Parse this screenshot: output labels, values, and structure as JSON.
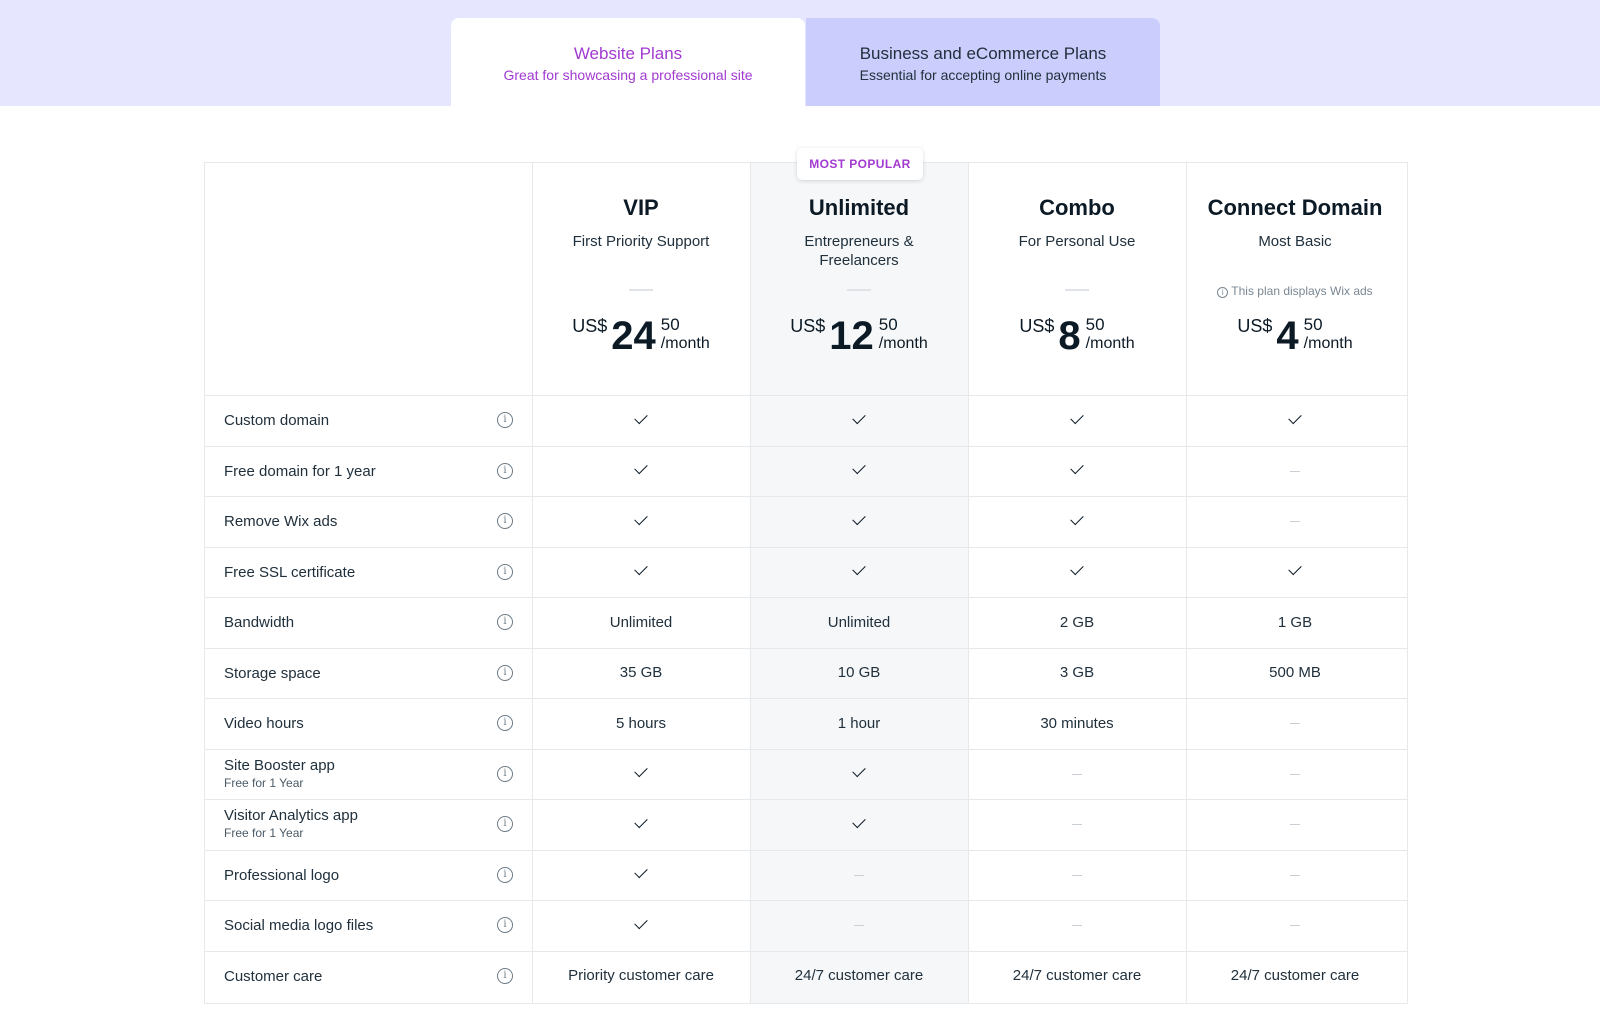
{
  "tabs": [
    {
      "title": "Website Plans",
      "subtitle": "Great for showcasing a professional site",
      "active": true
    },
    {
      "title": "Business and eCommerce Plans",
      "subtitle": "Essential for accepting online payments",
      "active": false
    }
  ],
  "badge": "MOST POPULAR",
  "currency": "US$",
  "per_month": "/month",
  "plans": [
    {
      "name": "VIP",
      "tagline": "First Priority Support",
      "price_whole": "24",
      "price_cents": "50",
      "note": ""
    },
    {
      "name": "Unlimited",
      "tagline": "Entrepreneurs & Freelancers",
      "price_whole": "12",
      "price_cents": "50",
      "note": "",
      "most_popular": true
    },
    {
      "name": "Combo",
      "tagline": "For Personal Use",
      "price_whole": "8",
      "price_cents": "50",
      "note": ""
    },
    {
      "name": "Connect Domain",
      "tagline": "Most Basic",
      "price_whole": "4",
      "price_cents": "50",
      "note": "This plan displays Wix ads"
    }
  ],
  "features": [
    {
      "label": "Custom domain",
      "sub": "",
      "values": [
        "check",
        "check",
        "check",
        "check"
      ]
    },
    {
      "label": "Free domain for 1 year",
      "sub": "",
      "values": [
        "check",
        "check",
        "check",
        "dash"
      ]
    },
    {
      "label": "Remove Wix ads",
      "sub": "",
      "values": [
        "check",
        "check",
        "check",
        "dash"
      ]
    },
    {
      "label": "Free SSL certificate",
      "sub": "",
      "values": [
        "check",
        "check",
        "check",
        "check"
      ]
    },
    {
      "label": "Bandwidth",
      "sub": "",
      "values": [
        "Unlimited",
        "Unlimited",
        "2 GB",
        "1 GB"
      ]
    },
    {
      "label": "Storage space",
      "sub": "",
      "values": [
        "35 GB",
        "10 GB",
        "3 GB",
        "500 MB"
      ]
    },
    {
      "label": "Video hours",
      "sub": "",
      "values": [
        "5 hours",
        "1 hour",
        "30 minutes",
        "dash"
      ]
    },
    {
      "label": "Site Booster app",
      "sub": "Free for 1 Year",
      "values": [
        "check",
        "check",
        "dash",
        "dash"
      ]
    },
    {
      "label": "Visitor Analytics app",
      "sub": "Free for 1 Year",
      "values": [
        "check",
        "check",
        "dash",
        "dash"
      ]
    },
    {
      "label": "Professional logo",
      "sub": "",
      "values": [
        "check",
        "dash",
        "dash",
        "dash"
      ]
    },
    {
      "label": "Social media logo files",
      "sub": "",
      "values": [
        "check",
        "dash",
        "dash",
        "dash"
      ]
    },
    {
      "label": "Customer care",
      "sub": "",
      "values": [
        "Priority customer care",
        "24/7 customer care",
        "24/7 customer care",
        "24/7 customer care"
      ]
    }
  ],
  "colors": {
    "band": "#e6e7fe",
    "inactive_tab": "#cbcdfd",
    "accent": "#a23ad0",
    "highlight_column": "#f6f7f8",
    "border": "#e6e9ec"
  },
  "icons": {
    "check": "check-icon",
    "dash": "dash-icon",
    "info": "info-icon"
  }
}
